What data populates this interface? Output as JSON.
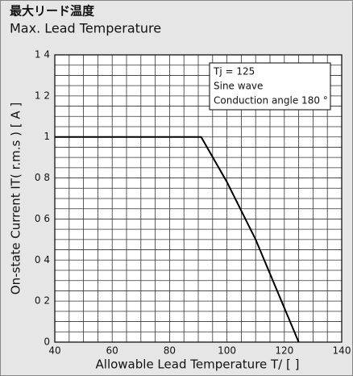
{
  "chart_data": {
    "type": "line",
    "title": "最大リード温度",
    "subtitle": "Max. Lead Temperature",
    "x_label": "Allowable Lead Temperature  T/ [    ]",
    "y_label": "On-state Current  IT( r.m.s ) [ A ]",
    "annotations": [
      "Tj = 125",
      "Sine wave",
      "Conduction angle 180 °"
    ],
    "x": [
      40,
      91,
      100,
      110,
      125
    ],
    "series": [
      {
        "color": "#000000",
        "values": [
          1,
          1,
          0.78,
          0.5,
          0
        ]
      }
    ],
    "xlim": [
      40,
      140
    ],
    "xticks": [
      40,
      60,
      80,
      100,
      120,
      140
    ],
    "ylim": [
      0,
      1.4
    ],
    "yticks": [
      0,
      {
        "value": 0.2,
        "label": "0 2"
      },
      {
        "value": 0.4,
        "label": "0 4"
      },
      {
        "value": 0.6,
        "label": "0 6"
      },
      {
        "value": 0.8,
        "label": "0 8"
      },
      1,
      {
        "value": 1.2,
        "label": "1 2"
      },
      {
        "value": 1.4,
        "label": "1 4"
      }
    ],
    "grid": true
  }
}
